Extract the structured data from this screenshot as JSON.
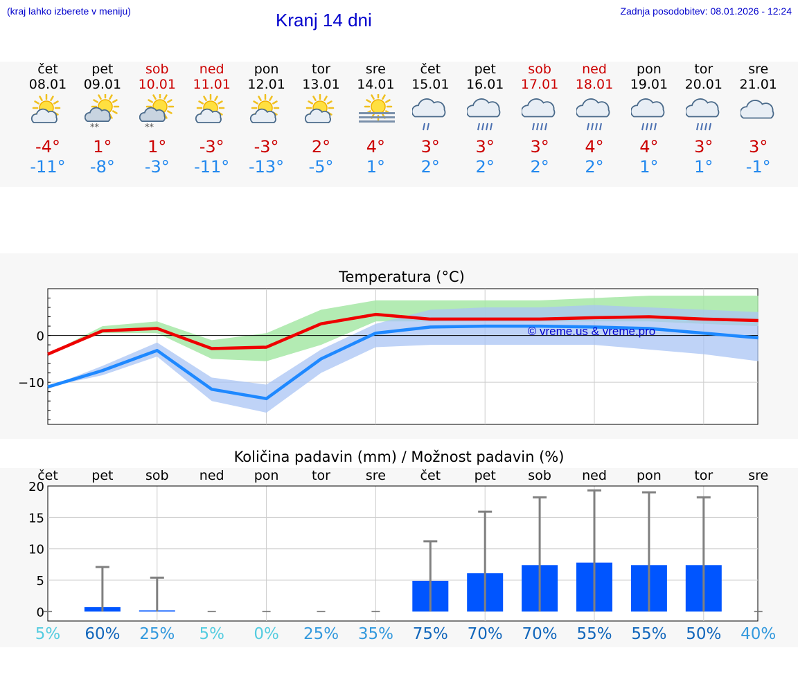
{
  "header": {
    "hint": "(kraj lahko izberete v meniju)",
    "title": "Kranj 14 dni",
    "updated": "Zadnja posodobitev: 08.01.2026 - 12:24"
  },
  "days": [
    {
      "name": "čet",
      "date": "08.01",
      "weekend": false,
      "tmax": "-4°",
      "tmin": "-11°",
      "icon": "sun-cloud-icon"
    },
    {
      "name": "pet",
      "date": "09.01",
      "weekend": false,
      "tmax": "1°",
      "tmin": "-8°",
      "icon": "sun-cloud-snow-icon"
    },
    {
      "name": "sob",
      "date": "10.01",
      "weekend": true,
      "tmax": "1°",
      "tmin": "-3°",
      "icon": "sun-cloud-snow-icon"
    },
    {
      "name": "ned",
      "date": "11.01",
      "weekend": true,
      "tmax": "-3°",
      "tmin": "-11°",
      "icon": "sun-cloud-icon"
    },
    {
      "name": "pon",
      "date": "12.01",
      "weekend": false,
      "tmax": "-3°",
      "tmin": "-13°",
      "icon": "sun-cloud-icon"
    },
    {
      "name": "tor",
      "date": "13.01",
      "weekend": false,
      "tmax": "2°",
      "tmin": "-5°",
      "icon": "sun-cloud-icon"
    },
    {
      "name": "sre",
      "date": "14.01",
      "weekend": false,
      "tmax": "4°",
      "tmin": "1°",
      "icon": "sun-fog-icon"
    },
    {
      "name": "čet",
      "date": "15.01",
      "weekend": false,
      "tmax": "3°",
      "tmin": "2°",
      "icon": "cloud-light-rain-icon"
    },
    {
      "name": "pet",
      "date": "16.01",
      "weekend": false,
      "tmax": "3°",
      "tmin": "2°",
      "icon": "cloud-rain-icon"
    },
    {
      "name": "sob",
      "date": "17.01",
      "weekend": true,
      "tmax": "3°",
      "tmin": "2°",
      "icon": "cloud-rain-icon"
    },
    {
      "name": "ned",
      "date": "18.01",
      "weekend": true,
      "tmax": "4°",
      "tmin": "2°",
      "icon": "cloud-rain-icon"
    },
    {
      "name": "pon",
      "date": "19.01",
      "weekend": false,
      "tmax": "4°",
      "tmin": "1°",
      "icon": "cloud-rain-icon"
    },
    {
      "name": "tor",
      "date": "20.01",
      "weekend": false,
      "tmax": "3°",
      "tmin": "1°",
      "icon": "cloud-rain-icon"
    },
    {
      "name": "sre",
      "date": "21.01",
      "weekend": false,
      "tmax": "3°",
      "tmin": "-1°",
      "icon": "cloud-icon"
    }
  ],
  "colors": {
    "title": "#0000cc",
    "weekend": "#cc0000",
    "tmax": "#cc0000",
    "tmin": "#2288ee",
    "max_line": "#ee0000",
    "min_line": "#1e88ff",
    "max_band": "#a6e8a6",
    "min_band": "#aac4f4",
    "bar": "#0055ff",
    "err": "#808080",
    "pct_low": "#55cce0",
    "pct_mid": "#3399dd",
    "pct_high": "#1166bb"
  },
  "chart_data": [
    {
      "type": "line",
      "title": "Temperatura (°C)",
      "watermark": "© vreme.us & vreme.pro",
      "ylim": [
        -19,
        10
      ],
      "yticks": [
        0,
        -10
      ],
      "ytick_labels": [
        "0",
        "−10"
      ],
      "series": [
        {
          "name": "max",
          "values": [
            -4,
            1,
            1.5,
            -2.8,
            -2.5,
            2.5,
            4.5,
            3.5,
            3.5,
            3.5,
            3.8,
            4,
            3.5,
            3.2
          ]
        },
        {
          "name": "min",
          "values": [
            -11,
            -7.5,
            -3.2,
            -11.5,
            -13.5,
            -5,
            0.5,
            1.8,
            2,
            2,
            1.8,
            1.5,
            0.5,
            -0.5
          ]
        }
      ],
      "bands": [
        {
          "name": "max_range",
          "low": [
            -4,
            0.5,
            0.5,
            -5,
            -5.5,
            -2,
            3,
            3,
            3,
            3,
            3,
            3,
            2.5,
            2
          ],
          "high": [
            -4,
            2,
            3,
            -1,
            0.5,
            5.5,
            7.5,
            7.5,
            7.5,
            7.5,
            8,
            8.5,
            8.5,
            8.5
          ]
        },
        {
          "name": "min_range",
          "low": [
            -11,
            -8.5,
            -4.5,
            -14,
            -16.5,
            -8,
            -2.5,
            -2,
            -2,
            -2,
            -2,
            -3,
            -4,
            -5.5
          ],
          "high": [
            -11,
            -6.5,
            -1.5,
            -9,
            -10.5,
            -3,
            2.5,
            5.5,
            6,
            6,
            6.5,
            6,
            5.5,
            5
          ]
        }
      ]
    },
    {
      "type": "bar",
      "title": "Količina padavin (mm) / Možnost padavin (%)",
      "categories": [
        "čet",
        "pet",
        "sob",
        "ned",
        "pon",
        "tor",
        "sre",
        "čet",
        "pet",
        "sob",
        "ned",
        "pon",
        "tor",
        "sre"
      ],
      "ylim": [
        -1.5,
        20
      ],
      "yticks": [
        0,
        5,
        10,
        15,
        20
      ],
      "values": [
        0,
        0.7,
        0.2,
        0,
        0,
        0,
        0,
        4.9,
        6.1,
        7.4,
        7.8,
        7.4,
        7.4,
        0
      ],
      "error_high": [
        0,
        7.1,
        5.4,
        0,
        0,
        0,
        0,
        11.2,
        15.9,
        18.2,
        19.3,
        19,
        18.2,
        0
      ],
      "probabilities": [
        "5%",
        "60%",
        "25%",
        "5%",
        "0%",
        "25%",
        "35%",
        "75%",
        "70%",
        "70%",
        "55%",
        "55%",
        "50%",
        "40%"
      ],
      "probability_levels": [
        1,
        3,
        2,
        1,
        1,
        2,
        2,
        3,
        3,
        3,
        3,
        3,
        3,
        2
      ]
    }
  ]
}
